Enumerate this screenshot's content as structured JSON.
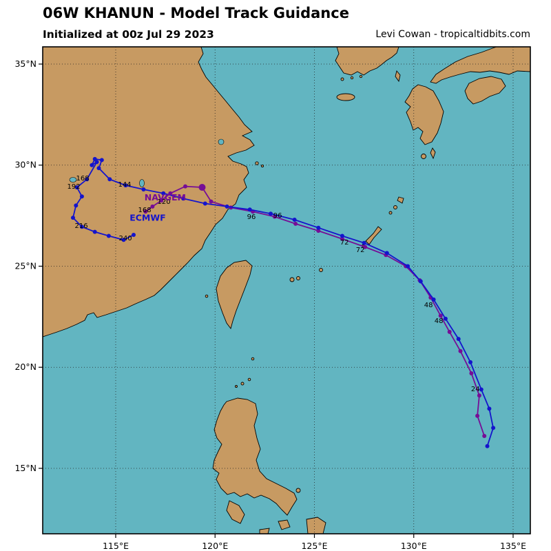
{
  "header": {
    "title": "06W KHANUN - Model Track Guidance",
    "subtitle": "Initialized at 00z Jul 29 2023",
    "credit": "Levi Cowan - tropicaltidbits.com"
  },
  "map": {
    "bounds": {
      "lon_min": 111.326,
      "lon_max": 135.867,
      "lat_min": 11.762,
      "lat_max": 35.852
    },
    "x_ticks": [
      {
        "lon": 115,
        "label": "115°E"
      },
      {
        "lon": 120,
        "label": "120°E"
      },
      {
        "lon": 125,
        "label": "125°E"
      },
      {
        "lon": 130,
        "label": "130°E"
      },
      {
        "lon": 135,
        "label": "135°E"
      }
    ],
    "y_ticks": [
      {
        "lat": 15,
        "label": "15°N"
      },
      {
        "lat": 20,
        "label": "20°N"
      },
      {
        "lat": 25,
        "label": "25°N"
      },
      {
        "lat": 30,
        "label": "30°N"
      },
      {
        "lat": 35,
        "label": "35°N"
      }
    ],
    "colors": {
      "ocean": "#62b5c1",
      "land": "#c79a62",
      "grid": "#222222",
      "border": "#000000"
    }
  },
  "chart_data": {
    "type": "line",
    "title": "06W KHANUN - Model Track Guidance",
    "x_axis": "Longitude (°E)",
    "y_axis": "Latitude (°N)",
    "series": [
      {
        "name": "NAVGEM",
        "color": "#760d96",
        "highlight_index": 19,
        "points": [
          [
            133.55,
            16.6
          ],
          [
            133.2,
            17.6
          ],
          [
            133.3,
            18.6
          ],
          [
            132.9,
            19.7
          ],
          [
            132.35,
            20.8
          ],
          [
            131.8,
            21.75
          ],
          [
            131.35,
            22.55
          ],
          [
            130.85,
            23.45
          ],
          [
            130.3,
            24.3
          ],
          [
            129.6,
            25.0
          ],
          [
            128.6,
            25.55
          ],
          [
            127.55,
            25.95
          ],
          [
            126.4,
            26.35
          ],
          [
            125.2,
            26.75
          ],
          [
            124.05,
            27.1
          ],
          [
            123.0,
            27.45
          ],
          [
            121.9,
            27.7
          ],
          [
            120.8,
            27.9
          ],
          [
            119.8,
            28.2
          ],
          [
            119.35,
            28.9
          ],
          [
            118.5,
            28.95
          ],
          [
            117.75,
            28.6
          ],
          [
            117.3,
            28.25
          ],
          [
            116.85,
            27.95
          ],
          [
            116.5,
            27.7
          ]
        ]
      },
      {
        "name": "ECMWF",
        "color": "#1414cc",
        "highlight_index": -1,
        "points": [
          [
            133.7,
            16.1
          ],
          [
            134.0,
            17.0
          ],
          [
            133.8,
            17.95
          ],
          [
            133.4,
            18.9
          ],
          [
            132.85,
            20.25
          ],
          [
            132.25,
            21.4
          ],
          [
            131.6,
            22.4
          ],
          [
            131.0,
            23.35
          ],
          [
            130.35,
            24.25
          ],
          [
            129.7,
            25.0
          ],
          [
            128.65,
            25.65
          ],
          [
            127.5,
            26.15
          ],
          [
            126.4,
            26.5
          ],
          [
            125.2,
            26.9
          ],
          [
            124.0,
            27.3
          ],
          [
            122.8,
            27.6
          ],
          [
            121.75,
            27.8
          ],
          [
            120.6,
            27.95
          ],
          [
            119.5,
            28.1
          ],
          [
            118.4,
            28.35
          ],
          [
            117.4,
            28.6
          ],
          [
            116.4,
            28.8
          ],
          [
            115.5,
            29.0
          ],
          [
            114.7,
            29.3
          ],
          [
            114.15,
            29.85
          ],
          [
            114.3,
            30.25
          ],
          [
            113.95,
            30.3
          ],
          [
            113.8,
            30.0
          ],
          [
            114.05,
            30.15
          ],
          [
            113.55,
            29.3
          ],
          [
            113.05,
            28.9
          ],
          [
            113.3,
            28.45
          ],
          [
            113.0,
            28.0
          ],
          [
            112.85,
            27.4
          ],
          [
            113.3,
            26.95
          ],
          [
            113.95,
            26.7
          ],
          [
            114.65,
            26.5
          ],
          [
            115.4,
            26.3
          ],
          [
            115.9,
            26.55
          ]
        ]
      }
    ],
    "model_labels": [
      {
        "text": "NAVGEM",
        "lon": 116.45,
        "lat": 28.25,
        "color": "#760d96"
      },
      {
        "text": "ECMWF",
        "lon": 115.7,
        "lat": 27.25,
        "color": "#1414cc"
      }
    ],
    "hour_labels": [
      {
        "text": "24",
        "lon": 133.1,
        "lat": 18.81
      },
      {
        "text": "48",
        "lon": 130.74,
        "lat": 22.97
      },
      {
        "text": "48",
        "lon": 131.26,
        "lat": 22.19
      },
      {
        "text": "72",
        "lon": 126.51,
        "lat": 26.07
      },
      {
        "text": "72",
        "lon": 127.31,
        "lat": 25.7
      },
      {
        "text": "96",
        "lon": 121.83,
        "lat": 27.33
      },
      {
        "text": "96",
        "lon": 123.15,
        "lat": 27.4
      },
      {
        "text": "120",
        "lon": 117.43,
        "lat": 28.08
      },
      {
        "text": "144",
        "lon": 115.45,
        "lat": 28.94
      },
      {
        "text": "168",
        "lon": 113.34,
        "lat": 29.25
      },
      {
        "text": "168",
        "lon": 116.46,
        "lat": 27.67
      },
      {
        "text": "192",
        "lon": 112.89,
        "lat": 28.83
      },
      {
        "text": "216",
        "lon": 113.27,
        "lat": 26.89
      },
      {
        "text": "240",
        "lon": 115.49,
        "lat": 26.27
      }
    ]
  }
}
